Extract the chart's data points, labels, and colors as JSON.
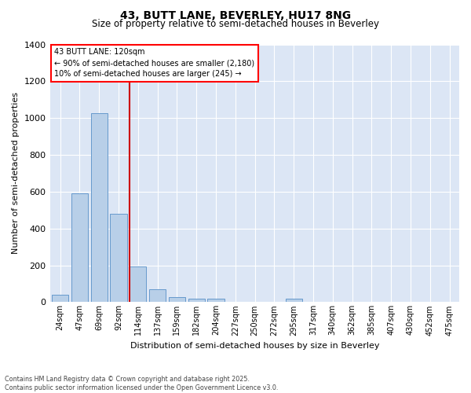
{
  "title": "43, BUTT LANE, BEVERLEY, HU17 8NG",
  "subtitle": "Size of property relative to semi-detached houses in Beverley",
  "xlabel": "Distribution of semi-detached houses by size in Beverley",
  "ylabel": "Number of semi-detached properties",
  "categories": [
    "24sqm",
    "47sqm",
    "69sqm",
    "92sqm",
    "114sqm",
    "137sqm",
    "159sqm",
    "182sqm",
    "204sqm",
    "227sqm",
    "250sqm",
    "272sqm",
    "295sqm",
    "317sqm",
    "340sqm",
    "362sqm",
    "385sqm",
    "407sqm",
    "430sqm",
    "452sqm",
    "475sqm"
  ],
  "values": [
    40,
    590,
    1025,
    480,
    195,
    70,
    28,
    20,
    20,
    0,
    0,
    0,
    20,
    0,
    0,
    0,
    0,
    0,
    0,
    0,
    0
  ],
  "bar_color": "#b8cfe8",
  "bar_edge_color": "#6699cc",
  "highlight_index": 4,
  "highlight_color": "#cc0000",
  "annotation_line1": "43 BUTT LANE: 120sqm",
  "annotation_line2": "← 90% of semi-detached houses are smaller (2,180)",
  "annotation_line3": "10% of semi-detached houses are larger (245) →",
  "ylim": [
    0,
    1400
  ],
  "yticks": [
    0,
    200,
    400,
    600,
    800,
    1000,
    1200,
    1400
  ],
  "plot_bg_color": "#dce6f5",
  "fig_bg_color": "#ffffff",
  "grid_color": "#ffffff",
  "footer_line1": "Contains HM Land Registry data © Crown copyright and database right 2025.",
  "footer_line2": "Contains public sector information licensed under the Open Government Licence v3.0."
}
